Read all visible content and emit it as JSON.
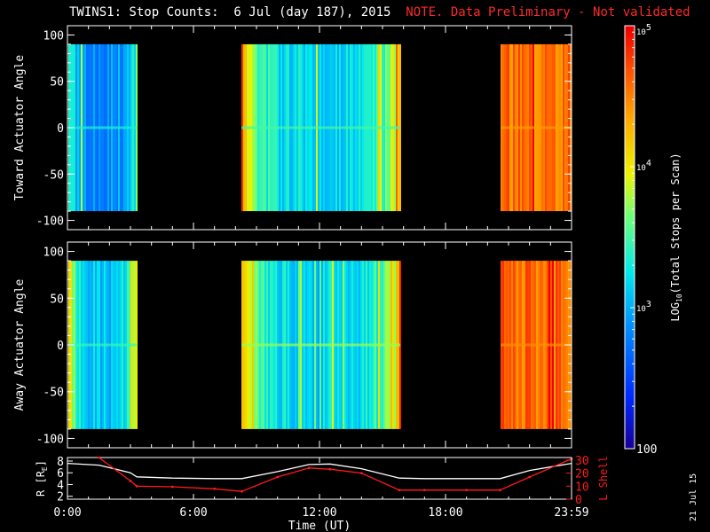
{
  "header": {
    "title": "TWINS1: Stop Counts:  6 Jul (day 187), 2015",
    "note": "NOTE. Data Preliminary - Not validated"
  },
  "stamp": "21 Jul 15",
  "colors": {
    "background": "#000000",
    "foreground": "#ffffff",
    "note": "#ff2a2a",
    "radius_line": "#ffffff",
    "lshell_line": "#ff1a1a"
  },
  "chart_data": [
    {
      "type": "heatmap",
      "name": "toward",
      "ylabel": "Toward Actuator Angle",
      "ylim": [
        -110,
        110
      ],
      "yticks": [
        100,
        50,
        0,
        -50,
        -100
      ],
      "xlim": [
        0,
        24
      ],
      "data_y_range": [
        -90,
        90
      ],
      "segments": [
        {
          "start": 0.05,
          "end": 3.3,
          "base": 2.85,
          "edge": 3.6,
          "level": 3.35
        },
        {
          "start": 8.3,
          "end": 15.85,
          "base": 3.15,
          "edge": 4.25,
          "level": 3.5
        },
        {
          "start": 20.6,
          "end": 24.0,
          "base": 4.55,
          "edge": 4.55,
          "level": 4.4
        }
      ],
      "axis_line_y": 0
    },
    {
      "type": "heatmap",
      "name": "away",
      "ylabel": "Away Actuator Angle",
      "ylim": [
        -110,
        110
      ],
      "yticks": [
        100,
        50,
        0,
        -50,
        -100
      ],
      "xlim": [
        0,
        24
      ],
      "data_y_range": [
        -90,
        90
      ],
      "segments": [
        {
          "start": 0.05,
          "end": 3.3,
          "base": 3.1,
          "edge": 4.25,
          "level": 3.45
        },
        {
          "start": 8.3,
          "end": 15.85,
          "base": 3.15,
          "edge": 4.35,
          "level": 3.75
        },
        {
          "start": 20.6,
          "end": 24.0,
          "base": 4.6,
          "edge": 4.6,
          "level": 4.45
        }
      ],
      "axis_line_y": 0
    },
    {
      "type": "line",
      "name": "orbit",
      "x": [
        0,
        1.5,
        3.0,
        3.3,
        5.0,
        7.0,
        8.3,
        10.0,
        11.5,
        12.5,
        14.0,
        15.8,
        17.0,
        19.0,
        20.6,
        22.0,
        24.0
      ],
      "series": [
        {
          "axis": "left",
          "values": [
            7.6,
            7.3,
            6.0,
            5.3,
            5.1,
            5.0,
            5.0,
            6.2,
            7.4,
            7.5,
            6.7,
            5.1,
            5.0,
            5.0,
            5.0,
            6.4,
            7.6
          ]
        },
        {
          "axis": "right",
          "values": [
            null,
            32,
            14,
            10,
            9.5,
            8,
            6,
            17,
            24,
            23,
            20,
            7,
            7,
            7,
            7,
            17,
            31
          ]
        }
      ],
      "ylabel": "R [R_E]",
      "ylabel_main": "R [R",
      "ylabel_sub": "E",
      "ylabel_end": "]",
      "ylim": [
        1.5,
        8.6
      ],
      "yticks": [
        2,
        4,
        6,
        8
      ],
      "ylabel2": "L Shell",
      "ylim2": [
        0,
        32
      ],
      "yticks2": [
        0,
        10,
        20,
        30
      ],
      "xlim": [
        0,
        24
      ],
      "xticks": [
        0,
        6,
        12,
        18,
        24
      ],
      "xticklabels": [
        "0:00",
        "6:00",
        "12:00",
        "18:00",
        "23:59"
      ],
      "xlabel": "Time (UT)"
    }
  ],
  "colorbar": {
    "type": "colorbar",
    "scale": "log",
    "range": [
      2,
      5
    ],
    "label": "LOG10(Total Stops per Scan)",
    "ylabel_log": "LOG",
    "ylabel_sub": "10",
    "ylabel_rest": "(Total Stops per Scan)",
    "ticks": [
      {
        "value": 5,
        "base": "10",
        "exp": "5"
      },
      {
        "value": 4,
        "base": "10",
        "exp": "4"
      },
      {
        "value": 3,
        "base": "10",
        "exp": "3"
      },
      {
        "value": 2,
        "label": "100"
      }
    ]
  }
}
